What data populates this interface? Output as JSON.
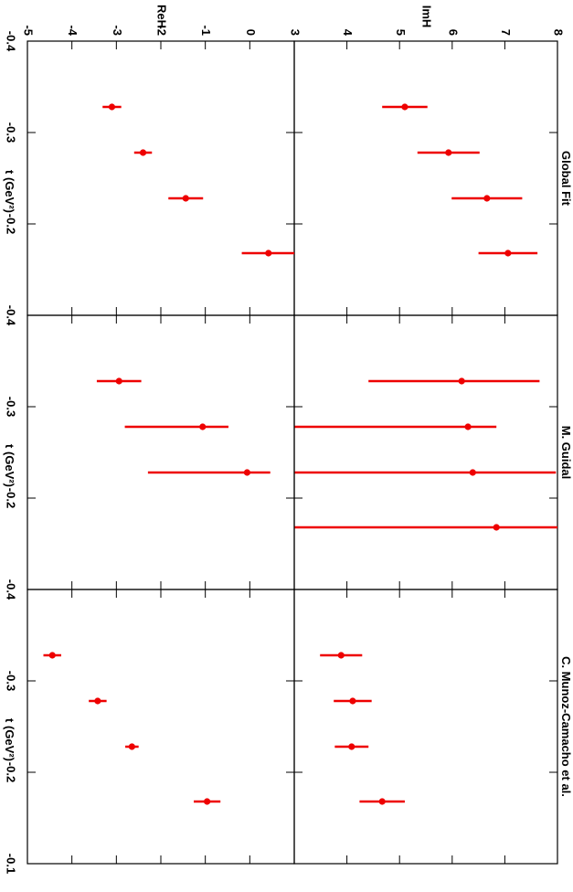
{
  "chart_data": [
    {
      "type": "scatter",
      "title": "Global Fit",
      "ylabel": "ImH",
      "xlim": [
        -0.4,
        -0.1
      ],
      "ylim": [
        3,
        8
      ],
      "yticks": [
        3,
        4,
        5,
        6,
        7,
        8
      ],
      "color": "#ee0000",
      "x": [
        -0.328,
        -0.278,
        -0.228,
        -0.168
      ],
      "values": [
        5.1,
        5.93,
        6.66,
        7.06
      ],
      "errors_minus": [
        0.43,
        0.59,
        0.67,
        0.56
      ],
      "errors_plus": [
        0.43,
        0.59,
        0.67,
        0.56
      ]
    },
    {
      "type": "scatter",
      "title": "M. Guidal",
      "xlim": [
        -0.4,
        -0.1
      ],
      "ylim": [
        3,
        8
      ],
      "color": "#ee0000",
      "x": [
        -0.328,
        -0.278,
        -0.228,
        -0.168
      ],
      "values": [
        6.18,
        6.3,
        6.39,
        6.84
      ],
      "errors_minus": [
        1.77,
        4,
        4,
        4
      ],
      "errors_plus": [
        1.48,
        0.54,
        1.58,
        1.5
      ]
    },
    {
      "type": "scatter",
      "title": "C. Munoz-Camacho et al.",
      "xlim": [
        -0.4,
        -0.1
      ],
      "ylim": [
        3,
        8
      ],
      "color": "#ee0000",
      "x": [
        -0.328,
        -0.278,
        -0.228,
        -0.168
      ],
      "values": [
        3.89,
        4.11,
        4.09,
        4.67
      ],
      "errors_minus": [
        0.4,
        0.36,
        0.32,
        0.43
      ],
      "errors_plus": [
        0.4,
        0.36,
        0.32,
        0.43
      ]
    },
    {
      "type": "scatter",
      "ylabel": "ReH",
      "xlabel": "t (GeV²)",
      "xlim": [
        -0.4,
        -0.1
      ],
      "ylim": [
        -5,
        1
      ],
      "xticks": [
        -0.4,
        -0.3,
        -0.2
      ],
      "yticks": [
        -5,
        -4,
        -3,
        -2,
        -1,
        0
      ],
      "color": "#ee0000",
      "x": [
        -0.328,
        -0.278,
        -0.228,
        -0.168
      ],
      "values": [
        -3.1,
        -2.4,
        -1.44,
        0.42
      ],
      "errors_minus": [
        0.21,
        0.2,
        0.39,
        0.6
      ],
      "errors_plus": [
        0.21,
        0.2,
        0.39,
        0.6
      ]
    },
    {
      "type": "scatter",
      "xlabel": "t (GeV²)",
      "xlim": [
        -0.4,
        -0.1
      ],
      "ylim": [
        -5,
        1
      ],
      "xticks": [
        -0.4,
        -0.3,
        -0.2
      ],
      "color": "#ee0000",
      "x": [
        -0.328,
        -0.278,
        -0.228
      ],
      "values": [
        -2.94,
        -1.06,
        -0.06
      ],
      "errors_minus": [
        0.5,
        1.75,
        2.23
      ],
      "errors_plus": [
        0.5,
        0.58,
        0.52
      ]
    },
    {
      "type": "scatter",
      "xlabel": "t (GeV²)",
      "xlim": [
        -0.4,
        -0.1
      ],
      "ylim": [
        -5,
        1
      ],
      "xticks": [
        -0.4,
        -0.3,
        -0.2,
        -0.1
      ],
      "color": "#ee0000",
      "x": [
        -0.328,
        -0.278,
        -0.228,
        -0.168
      ],
      "values": [
        -4.44,
        -3.42,
        -2.65,
        -0.96
      ],
      "errors_minus": [
        0.2,
        0.2,
        0.15,
        0.3
      ],
      "errors_plus": [
        0.2,
        0.2,
        0.15,
        0.3
      ]
    }
  ]
}
